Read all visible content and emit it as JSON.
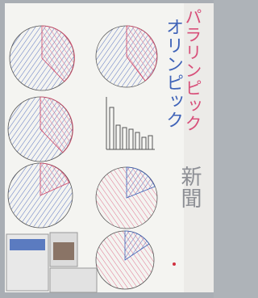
{
  "title": {
    "line1": "オリンピック",
    "line2": "パラリンピック",
    "line3": "新聞"
  }
}
